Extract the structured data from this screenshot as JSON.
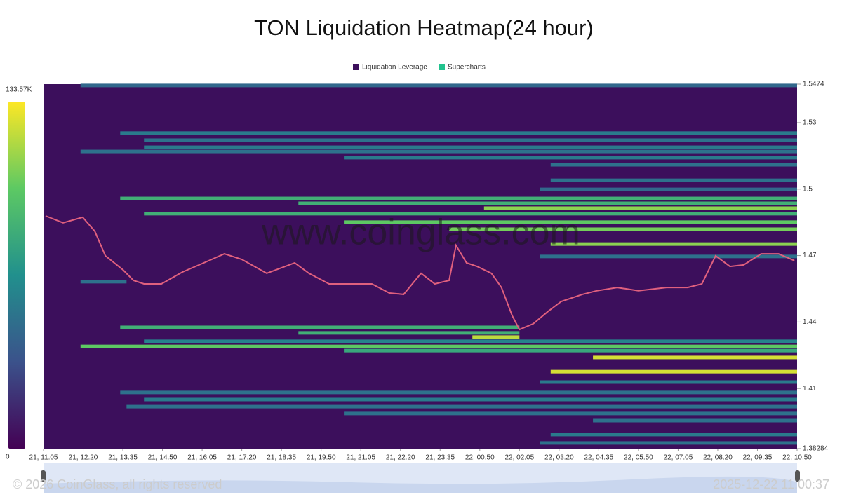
{
  "chart_data": {
    "type": "heatmap",
    "title": "TON Liquidation Heatmap(24 hour)",
    "watermark": "www.coinglass.com",
    "copyright": "© 2026 CoinGlass, all rights reserved",
    "timestamp": "2025-12-22 11:00:37",
    "ylim": [
      1.38284,
      1.5474
    ],
    "yticks": [
      1.5474,
      1.53,
      1.5,
      1.47,
      1.44,
      1.41,
      1.38284
    ],
    "xlim": [
      0,
      1425
    ],
    "xticks": [
      {
        "value": 0,
        "label": "21, 11:05"
      },
      {
        "value": 75,
        "label": "21, 12:20"
      },
      {
        "value": 150,
        "label": "21, 13:35"
      },
      {
        "value": 225,
        "label": "21, 14:50"
      },
      {
        "value": 300,
        "label": "21, 16:05"
      },
      {
        "value": 375,
        "label": "21, 17:20"
      },
      {
        "value": 450,
        "label": "21, 18:35"
      },
      {
        "value": 525,
        "label": "21, 19:50"
      },
      {
        "value": 600,
        "label": "21, 21:05"
      },
      {
        "value": 675,
        "label": "21, 22:20"
      },
      {
        "value": 750,
        "label": "21, 23:35"
      },
      {
        "value": 825,
        "label": "22, 00:50"
      },
      {
        "value": 900,
        "label": "22, 02:05"
      },
      {
        "value": 975,
        "label": "22, 03:20"
      },
      {
        "value": 1050,
        "label": "22, 04:35"
      },
      {
        "value": 1125,
        "label": "22, 05:50"
      },
      {
        "value": 1200,
        "label": "22, 07:05"
      },
      {
        "value": 1275,
        "label": "22, 08:20"
      },
      {
        "value": 1350,
        "label": "22, 09:35"
      },
      {
        "value": 1425,
        "label": "22, 10:50"
      }
    ],
    "clim": [
      0,
      133570
    ],
    "colorbar_ticks": [
      0,
      {
        "value": 133570,
        "label": "133.57K"
      }
    ],
    "heatmap": {
      "name": "Liquidation Leverage",
      "color": "#3c0f5c",
      "price": [
        1.5468,
        1.5253,
        1.5221,
        1.5189,
        1.517,
        1.5142,
        1.511,
        1.504,
        1.4999,
        1.4958,
        1.4936,
        1.4914,
        1.4889,
        1.4851,
        1.4819,
        1.4752,
        1.4696,
        1.4582,
        1.4376,
        1.4351,
        1.4332,
        1.4313,
        1.429,
        1.4271,
        1.424,
        1.4176,
        1.4129,
        1.4082,
        1.405,
        1.4018,
        1.3987,
        1.3955,
        1.3892,
        1.3854
      ],
      "start": [
        70,
        145,
        190,
        190,
        70,
        568,
        959,
        959,
        939,
        145,
        482,
        833,
        190,
        568,
        767,
        959,
        939,
        70,
        145,
        482,
        811,
        190,
        70,
        568,
        1039,
        959,
        939,
        145,
        190,
        157,
        568,
        1039,
        959,
        939
      ],
      "end": [
        1425,
        1425,
        1425,
        1425,
        1425,
        1425,
        1425,
        1425,
        1425,
        1425,
        1425,
        1425,
        1425,
        1425,
        1425,
        1425,
        1425,
        157,
        900,
        900,
        900,
        1425,
        1425,
        1425,
        1425,
        1425,
        1425,
        1425,
        1425,
        1425,
        1425,
        1425,
        1425,
        1425
      ],
      "intensity": [
        45000,
        55000,
        50000,
        55000,
        50000,
        55000,
        50000,
        50000,
        45000,
        85000,
        85000,
        110000,
        85000,
        100000,
        105000,
        110000,
        50000,
        50000,
        85000,
        85000,
        120000,
        60000,
        100000,
        80000,
        125000,
        125000,
        55000,
        50000,
        55000,
        50000,
        50000,
        50000,
        55000,
        50000
      ]
    },
    "price_series": {
      "name": "Supercharts",
      "color": "#22c38e",
      "line_color": "#e0607e",
      "x": [
        4,
        37,
        74,
        97,
        117,
        150,
        170,
        190,
        223,
        263,
        303,
        342,
        375,
        422,
        475,
        502,
        540,
        581,
        621,
        654,
        681,
        714,
        740,
        767,
        780,
        800,
        820,
        847,
        866,
        886,
        900,
        926,
        953,
        979,
        1019,
        1046,
        1085,
        1125,
        1178,
        1218,
        1245,
        1271,
        1298,
        1324,
        1357,
        1390,
        1420
      ],
      "values": [
        1.4879,
        1.4848,
        1.4873,
        1.481,
        1.4699,
        1.4636,
        1.4588,
        1.4572,
        1.4572,
        1.4626,
        1.4667,
        1.4708,
        1.4683,
        1.462,
        1.4667,
        1.462,
        1.4572,
        1.4572,
        1.4572,
        1.4531,
        1.4525,
        1.462,
        1.4572,
        1.4588,
        1.4746,
        1.4667,
        1.4651,
        1.462,
        1.4556,
        1.443,
        1.4366,
        1.4392,
        1.4446,
        1.4493,
        1.4525,
        1.4541,
        1.4556,
        1.4541,
        1.4556,
        1.4556,
        1.4572,
        1.4699,
        1.4651,
        1.4658,
        1.4708,
        1.4708,
        1.4677
      ]
    }
  }
}
